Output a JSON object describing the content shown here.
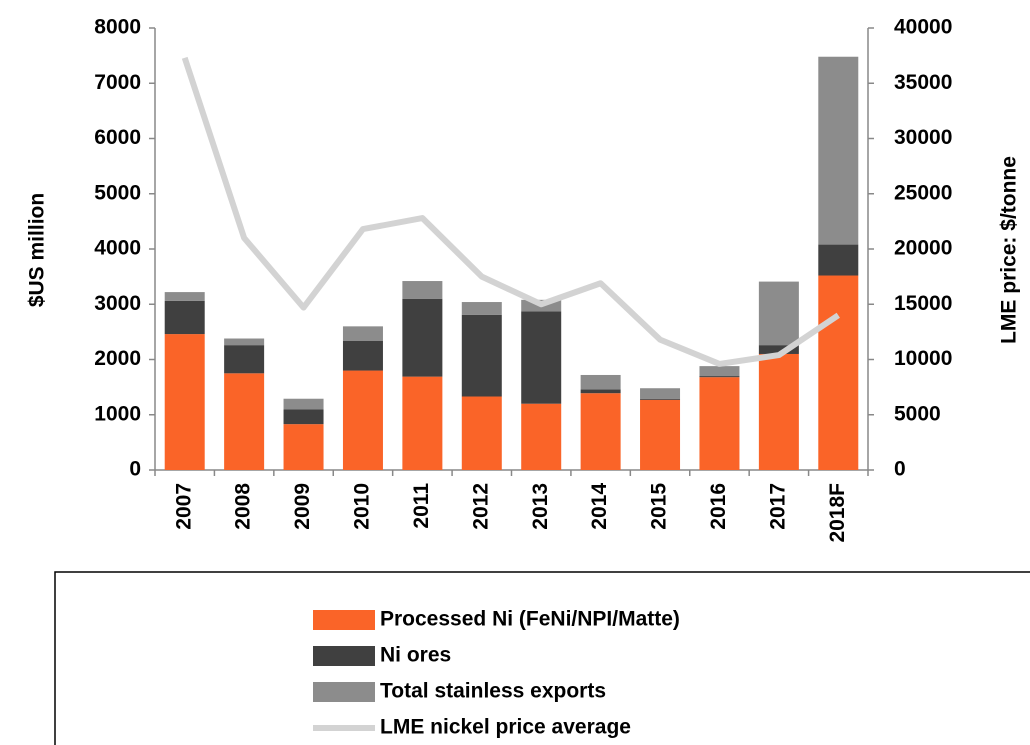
{
  "chart_data": {
    "type": "bar",
    "stacked": true,
    "ylabel": "$US million",
    "y2label": "LME price: $/tonne",
    "categories": [
      "2007",
      "2008",
      "2009",
      "2010",
      "2011",
      "2012",
      "2013",
      "2014",
      "2015",
      "2016",
      "2017",
      "2018F"
    ],
    "series": [
      {
        "name": "Processed Ni (FeNi/NPI/Matte)",
        "color": "#fa6428",
        "values": [
          2460,
          1750,
          830,
          1800,
          1690,
          1330,
          1200,
          1390,
          1270,
          1680,
          2100,
          3520
        ]
      },
      {
        "name": "Ni ores",
        "color": "#404040",
        "values": [
          600,
          510,
          270,
          540,
          1410,
          1480,
          1670,
          70,
          20,
          20,
          160,
          560
        ]
      },
      {
        "name": "Total stainless exports",
        "color": "#8c8c8c",
        "values": [
          160,
          120,
          190,
          260,
          320,
          230,
          210,
          260,
          190,
          180,
          1150,
          3400
        ]
      },
      {
        "name": "LME nickel price average",
        "color": "#d3d3d3",
        "type": "line",
        "axis": "y2",
        "values": [
          37300,
          21000,
          14700,
          21800,
          22800,
          17500,
          15000,
          16900,
          11800,
          9600,
          10400,
          14000
        ]
      }
    ],
    "ylim": [
      0,
      8000
    ],
    "yticks": [
      0,
      1000,
      2000,
      3000,
      4000,
      5000,
      6000,
      7000,
      8000
    ],
    "y2lim": [
      0,
      40000
    ],
    "y2ticks": [
      0,
      5000,
      10000,
      15000,
      20000,
      25000,
      30000,
      35000,
      40000
    ]
  }
}
